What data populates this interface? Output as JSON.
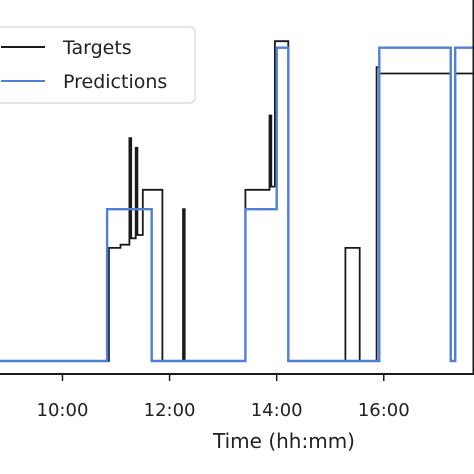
{
  "chart_data": {
    "type": "line",
    "title": "",
    "xlabel": "Time (hh:mm)",
    "ylabel": "",
    "xlim": [
      "08:50",
      "17:40"
    ],
    "ylim": [
      0,
      1
    ],
    "x_ticks": [
      "10:00",
      "12:00",
      "14:00",
      "16:00"
    ],
    "grid": false,
    "legend_position": "top-left",
    "series": [
      {
        "name": "Targets",
        "color": "#1a1a1a",
        "points": [
          [
            "08:50",
            0.0
          ],
          [
            "10:52",
            0.0
          ],
          [
            "10:52",
            0.35
          ],
          [
            "11:05",
            0.35
          ],
          [
            "11:05",
            0.36
          ],
          [
            "11:15",
            0.36
          ],
          [
            "11:15",
            0.69
          ],
          [
            "11:17",
            0.69
          ],
          [
            "11:17",
            0.38
          ],
          [
            "11:22",
            0.38
          ],
          [
            "11:22",
            0.66
          ],
          [
            "11:24",
            0.66
          ],
          [
            "11:24",
            0.39
          ],
          [
            "11:30",
            0.39
          ],
          [
            "11:30",
            0.53
          ],
          [
            "11:52",
            0.53
          ],
          [
            "11:52",
            0.0
          ],
          [
            "12:15",
            0.0
          ],
          [
            "12:15",
            0.47
          ],
          [
            "12:17",
            0.47
          ],
          [
            "12:17",
            0.0
          ],
          [
            "13:25",
            0.0
          ],
          [
            "13:25",
            0.53
          ],
          [
            "13:52",
            0.53
          ],
          [
            "13:52",
            0.76
          ],
          [
            "13:54",
            0.76
          ],
          [
            "13:54",
            0.54
          ],
          [
            "13:58",
            0.54
          ],
          [
            "13:58",
            0.99
          ],
          [
            "14:13",
            0.99
          ],
          [
            "14:13",
            0.0
          ],
          [
            "15:17",
            0.0
          ],
          [
            "15:17",
            0.35
          ],
          [
            "15:33",
            0.35
          ],
          [
            "15:33",
            0.0
          ],
          [
            "15:52",
            0.0
          ],
          [
            "15:52",
            0.91
          ],
          [
            "15:55",
            0.91
          ],
          [
            "15:55",
            0.89
          ],
          [
            "17:15",
            0.89
          ],
          [
            "17:15",
            0.0
          ],
          [
            "17:20",
            0.0
          ],
          [
            "17:20",
            0.89
          ],
          [
            "17:40",
            0.89
          ]
        ]
      },
      {
        "name": "Predictions",
        "color": "#4f7fd6",
        "points": [
          [
            "08:50",
            0.0
          ],
          [
            "10:50",
            0.0
          ],
          [
            "10:50",
            0.47
          ],
          [
            "11:40",
            0.47
          ],
          [
            "11:40",
            0.0
          ],
          [
            "13:25",
            0.0
          ],
          [
            "13:25",
            0.47
          ],
          [
            "14:00",
            0.47
          ],
          [
            "14:00",
            0.97
          ],
          [
            "14:13",
            0.97
          ],
          [
            "14:13",
            0.0
          ],
          [
            "15:55",
            0.0
          ],
          [
            "15:55",
            0.97
          ],
          [
            "17:15",
            0.97
          ],
          [
            "17:15",
            0.0
          ],
          [
            "17:20",
            0.0
          ],
          [
            "17:20",
            0.97
          ],
          [
            "17:40",
            0.97
          ]
        ]
      }
    ]
  }
}
